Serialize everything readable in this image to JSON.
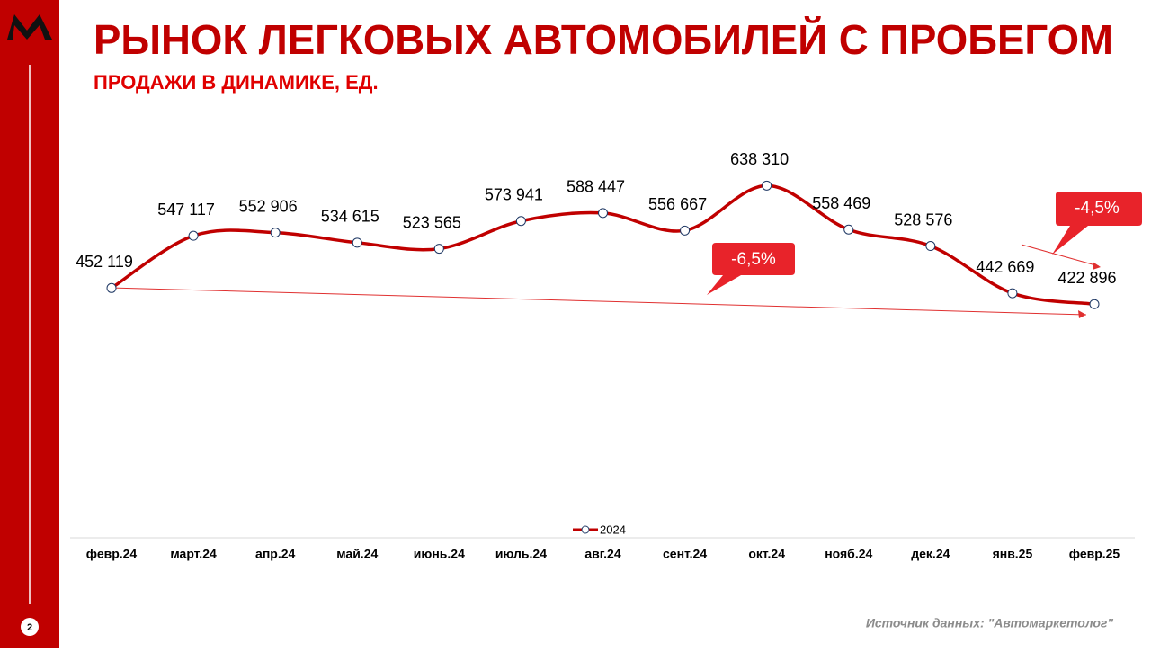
{
  "chart_data": {
    "type": "line",
    "title": "РЫНОК ЛЕГКОВЫХ АВТОМОБИЛЕЙ С ПРОБЕГОМ",
    "subtitle": "ПРОДАЖИ В ДИНАМИКЕ, ЕД.",
    "categories": [
      "февр.24",
      "март.24",
      "апр.24",
      "май.24",
      "июнь.24",
      "июль.24",
      "авг.24",
      "сент.24",
      "окт.24",
      "нояб.24",
      "дек.24",
      "янв.25",
      "февр.25"
    ],
    "series": [
      {
        "name": "2024",
        "color": "#c00000",
        "values": [
          452119,
          547117,
          552906,
          534615,
          523565,
          573941,
          588447,
          556667,
          638310,
          558469,
          528576,
          442669,
          422896
        ],
        "value_labels": [
          "452 119",
          "547 117",
          "552 906",
          "534 615",
          "523 565",
          "573 941",
          "588 447",
          "556 667",
          "638 310",
          "558 469",
          "528 576",
          "442 669",
          "422 896"
        ]
      }
    ],
    "ylim": [
      0,
      750000
    ],
    "legend": "bottom",
    "annotations": [
      "-6,5%",
      "-4,5%"
    ],
    "source": "Источник данных: \"Автомаркетолог\"",
    "page_number": "2"
  }
}
